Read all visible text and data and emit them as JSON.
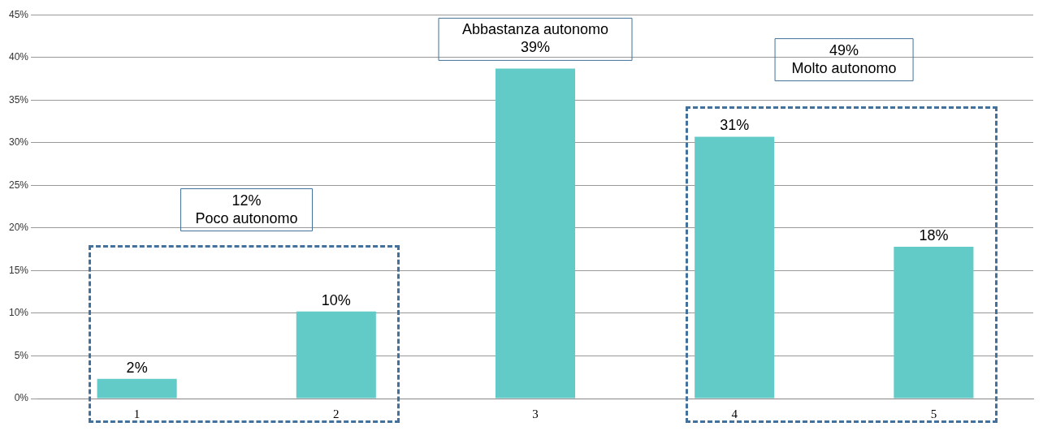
{
  "chart_data": {
    "type": "bar",
    "categories": [
      "1",
      "2",
      "3",
      "4",
      "5"
    ],
    "values": [
      2.3,
      10.2,
      38.7,
      30.7,
      17.8
    ],
    "value_labels": [
      "2%",
      "10%",
      null,
      "31%",
      "18%"
    ],
    "color": "#62cbc7",
    "ylim": [
      0,
      45
    ],
    "yticks": [
      {
        "value": 0,
        "label": "0%"
      },
      {
        "value": 5,
        "label": "5%"
      },
      {
        "value": 10,
        "label": "10%"
      },
      {
        "value": 15,
        "label": "15%"
      },
      {
        "value": 20,
        "label": "20%"
      },
      {
        "value": 25,
        "label": "25%"
      },
      {
        "value": 30,
        "label": "30%"
      },
      {
        "value": 35,
        "label": "35%"
      },
      {
        "value": 40,
        "label": "40%"
      },
      {
        "value": 45,
        "label": "45%"
      }
    ],
    "grid": "y",
    "legend": false,
    "annotations": [
      "12%\nPoco autonomo",
      "Abbastanza autonomo\n39%",
      "49%\nMolto autonomo"
    ]
  }
}
